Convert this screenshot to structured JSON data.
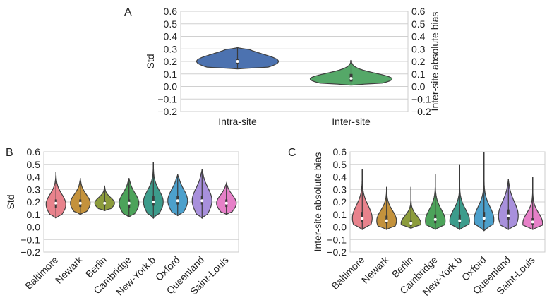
{
  "chart_data": [
    {
      "panel": "A",
      "type": "violin",
      "ylabel": "Std",
      "ylabel_right": "Inter-site absolute bias",
      "ylim": [
        -0.2,
        0.6
      ],
      "yticks": [
        "−0.2",
        "−0.1",
        "0.0",
        "0.1",
        "0.2",
        "0.3",
        "0.4",
        "0.5",
        "0.6"
      ],
      "ytick_values": [
        -0.2,
        -0.1,
        0.0,
        0.1,
        0.2,
        0.3,
        0.4,
        0.5,
        0.6
      ],
      "grid": true,
      "categories": [
        "Intra-site",
        "Inter-site"
      ],
      "colors": [
        "#4c72b0",
        "#55a868"
      ],
      "violins": [
        {
          "min": 0.14,
          "q1": 0.18,
          "median": 0.2,
          "q3": 0.22,
          "max": 0.31,
          "peak": 0.2,
          "spread": 0.06
        },
        {
          "min": 0.01,
          "q1": 0.04,
          "median": 0.065,
          "q3": 0.1,
          "max": 0.21,
          "peak": 0.06,
          "spread": 0.045
        }
      ]
    },
    {
      "panel": "B",
      "type": "violin",
      "ylabel": "Std",
      "ylim": [
        -0.2,
        0.6
      ],
      "yticks": [
        "−0.2",
        "−0.1",
        "0.0",
        "0.1",
        "0.2",
        "0.3",
        "0.4",
        "0.5",
        "0.6"
      ],
      "ytick_values": [
        -0.2,
        -0.1,
        0.0,
        0.1,
        0.2,
        0.3,
        0.4,
        0.5,
        0.6
      ],
      "grid": true,
      "categories": [
        "Baltimore",
        "Newark",
        "Berlin",
        "Cambridge",
        "New-York.b",
        "Oxford",
        "Queenland",
        "Saint-Louis"
      ],
      "colors": [
        "#e8828c",
        "#c4923c",
        "#8c9c3c",
        "#4ca35a",
        "#3c9c8c",
        "#4ca0cc",
        "#a890dc",
        "#e680c8"
      ],
      "violins": [
        {
          "min": 0.07,
          "q1": 0.15,
          "median": 0.19,
          "q3": 0.22,
          "max": 0.44,
          "peak": 0.18,
          "spread": 0.08
        },
        {
          "min": 0.1,
          "q1": 0.16,
          "median": 0.19,
          "q3": 0.22,
          "max": 0.39,
          "peak": 0.19,
          "spread": 0.07
        },
        {
          "min": 0.13,
          "q1": 0.17,
          "median": 0.19,
          "q3": 0.21,
          "max": 0.33,
          "peak": 0.19,
          "spread": 0.045
        },
        {
          "min": 0.08,
          "q1": 0.15,
          "median": 0.19,
          "q3": 0.22,
          "max": 0.39,
          "peak": 0.19,
          "spread": 0.08
        },
        {
          "min": 0.07,
          "q1": 0.17,
          "median": 0.2,
          "q3": 0.25,
          "max": 0.52,
          "peak": 0.2,
          "spread": 0.09
        },
        {
          "min": 0.09,
          "q1": 0.18,
          "median": 0.21,
          "q3": 0.25,
          "max": 0.42,
          "peak": 0.21,
          "spread": 0.09
        },
        {
          "min": 0.07,
          "q1": 0.18,
          "median": 0.21,
          "q3": 0.25,
          "max": 0.46,
          "peak": 0.21,
          "spread": 0.1
        },
        {
          "min": 0.1,
          "q1": 0.16,
          "median": 0.19,
          "q3": 0.22,
          "max": 0.35,
          "peak": 0.19,
          "spread": 0.065
        }
      ]
    },
    {
      "panel": "C",
      "type": "violin",
      "ylabel": "Inter-site absolute bias",
      "ylim": [
        -0.2,
        0.6
      ],
      "yticks": [
        "−0.2",
        "−0.1",
        "0.0",
        "0.1",
        "0.2",
        "0.3",
        "0.4",
        "0.5",
        "0.6"
      ],
      "ytick_values": [
        -0.2,
        -0.1,
        0.0,
        0.1,
        0.2,
        0.3,
        0.4,
        0.5,
        0.6
      ],
      "grid": true,
      "categories": [
        "Baltimore",
        "Newark",
        "Berlin",
        "Cambridge",
        "New-York.b",
        "Oxford",
        "Queenland",
        "Saint-Louis"
      ],
      "colors": [
        "#e8828c",
        "#c4923c",
        "#8c9c3c",
        "#4ca35a",
        "#3c9c8c",
        "#4ca0cc",
        "#a890dc",
        "#e680c8"
      ],
      "violins": [
        {
          "min": -0.02,
          "q1": 0.04,
          "median": 0.07,
          "q3": 0.12,
          "max": 0.46,
          "peak": 0.07,
          "spread": 0.1
        },
        {
          "min": -0.02,
          "q1": 0.03,
          "median": 0.05,
          "q3": 0.09,
          "max": 0.32,
          "peak": 0.05,
          "spread": 0.08
        },
        {
          "min": -0.01,
          "q1": 0.01,
          "median": 0.03,
          "q3": 0.05,
          "max": 0.32,
          "peak": 0.03,
          "spread": 0.06
        },
        {
          "min": -0.02,
          "q1": 0.03,
          "median": 0.06,
          "q3": 0.1,
          "max": 0.42,
          "peak": 0.05,
          "spread": 0.09
        },
        {
          "min": -0.02,
          "q1": 0.03,
          "median": 0.05,
          "q3": 0.1,
          "max": 0.5,
          "peak": 0.05,
          "spread": 0.09
        },
        {
          "min": -0.03,
          "q1": 0.04,
          "median": 0.07,
          "q3": 0.12,
          "max": 0.6,
          "peak": 0.06,
          "spread": 0.1
        },
        {
          "min": -0.02,
          "q1": 0.06,
          "median": 0.09,
          "q3": 0.14,
          "max": 0.38,
          "peak": 0.09,
          "spread": 0.11
        },
        {
          "min": -0.02,
          "q1": 0.02,
          "median": 0.04,
          "q3": 0.07,
          "max": 0.4,
          "peak": 0.03,
          "spread": 0.08
        }
      ]
    }
  ],
  "panel_labels": {
    "a": "A",
    "b": "B",
    "c": "C"
  }
}
